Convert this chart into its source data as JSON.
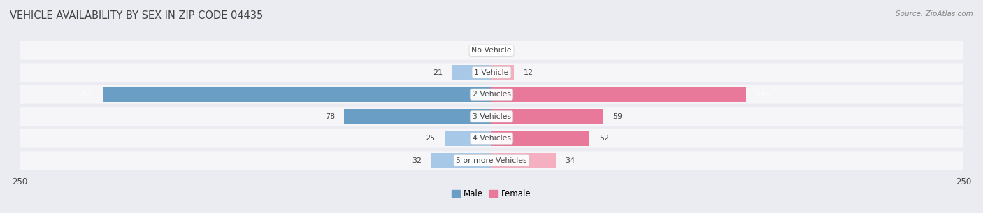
{
  "title": "VEHICLE AVAILABILITY BY SEX IN ZIP CODE 04435",
  "source": "Source: ZipAtlas.com",
  "categories": [
    "No Vehicle",
    "1 Vehicle",
    "2 Vehicles",
    "3 Vehicles",
    "4 Vehicles",
    "5 or more Vehicles"
  ],
  "male_values": [
    0,
    21,
    206,
    78,
    25,
    32
  ],
  "female_values": [
    0,
    12,
    135,
    59,
    52,
    34
  ],
  "male_color_small": "#a8c8e8",
  "female_color_small": "#f4afc0",
  "male_color_large": "#6a9ec4",
  "female_color_large": "#e8799a",
  "axis_limit": 250,
  "background_color": "#ebebf2",
  "bar_background": "#e0e0ea",
  "label_color": "#444444",
  "title_color": "#444444",
  "legend_male_color": "#6a9ec4",
  "legend_female_color": "#e8799a",
  "figsize": [
    14.06,
    3.05
  ],
  "dpi": 100
}
